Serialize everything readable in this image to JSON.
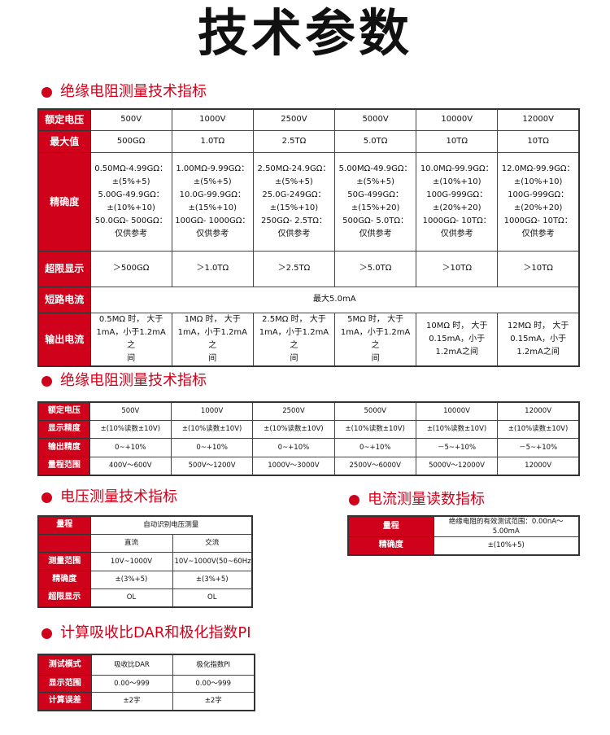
{
  "title": "技术参数",
  "colors": {
    "accent": "#d0021b"
  },
  "sections": {
    "insulation": "绝缘电阻测量技术指标",
    "insulation2": "绝缘电阻测量技术指标",
    "voltage": "电压测量技术指标",
    "current": "电流测量读数指标",
    "dar_pi": "计算吸收比DAR和极化指数PI"
  },
  "table1": {
    "rows": [
      {
        "label": "额定电压",
        "cells": [
          "500V",
          "1000V",
          "2500V",
          "5000V",
          "10000V",
          "12000V"
        ]
      },
      {
        "label": "最大值",
        "cells": [
          "500GΩ",
          "1.0TΩ",
          "2.5TΩ",
          "5.0TΩ",
          "10TΩ",
          "10TΩ"
        ]
      },
      {
        "label": "精确度",
        "cells": [
          "0.50MΩ-4.99GΩ：\n±(5%+5)\n5.00G-49.9GΩ：\n±(10%+10)\n50.0GΩ- 500GΩ：\n仅供参考",
          "1.00MΩ-9.99GΩ：\n±(5%+5)\n10.0G-99.9GΩ：\n±(15%+10)\n100GΩ- 1000GΩ：\n仅供参考",
          "2.50MΩ-24.9GΩ：\n±(5%+5)\n25.0G-249GΩ：\n±(15%+10)\n250GΩ- 2.5TΩ：\n仅供参考",
          "5.00MΩ-49.9GΩ：\n±(5%+5)\n50G-499GΩ：\n±(15%+20)\n500GΩ- 5.0TΩ：\n仅供参考",
          "10.0MΩ-99.9GΩ：\n±(10%+10)\n100G-999GΩ：\n±(20%+20)\n1000GΩ- 10TΩ：\n仅供参考",
          "12.0MΩ-99.9GΩ：\n±(10%+10)\n100G-999GΩ：\n±(20%+20)\n1000GΩ- 10TΩ：\n仅供参考"
        ]
      },
      {
        "label": "超限显示",
        "cells": [
          "＞500GΩ",
          "＞1.0TΩ",
          "＞2.5TΩ",
          "＞5.0TΩ",
          "＞10TΩ",
          "＞10TΩ"
        ]
      },
      {
        "label": "短路电流",
        "cells": [
          "最大5.0mA"
        ]
      },
      {
        "label": "输出电流",
        "cells": [
          "0.5MΩ 时， 大于\n1mA，小于1.2mA之\n间",
          "1MΩ 时， 大于\n1mA，小于1.2mA之\n间",
          "2.5MΩ 时， 大于\n1mA，小于1.2mA之\n间",
          "5MΩ 时， 大于\n1mA，小于1.2mA之\n间",
          "10MΩ 时， 大于\n0.15mA，小于\n1.2mA之间",
          "12MΩ 时， 大于\n0.15mA，小于\n1.2mA之间"
        ]
      }
    ]
  },
  "table2": {
    "rows": [
      {
        "label": "额定电压",
        "cells": [
          "500V",
          "1000V",
          "2500V",
          "5000V",
          "10000V",
          "12000V"
        ]
      },
      {
        "label": "显示精度",
        "cells": [
          "±(10%读数±10V)",
          "±(10%读数±10V)",
          "±(10%读数±10V)",
          "±(10%读数±10V)",
          "±(10%读数±10V)",
          "±(10%读数±10V)"
        ]
      },
      {
        "label": "输出精度",
        "cells": [
          "0~+10%",
          "0~+10%",
          "0~+10%",
          "0~+10%",
          "－5~+10%",
          "－5~+10%"
        ]
      },
      {
        "label": "量程范围",
        "cells": [
          "400V～600V",
          "500V～1200V",
          "1000V～3000V",
          "2500V～6000V",
          "5000V～12000V",
          "12000V"
        ]
      }
    ]
  },
  "table3": {
    "rows": [
      {
        "label": "量程",
        "cells": [
          "自动识别电压测量"
        ]
      },
      {
        "label": "",
        "cells": [
          "直流",
          "交流"
        ]
      },
      {
        "label": "测量范围",
        "cells": [
          "10V~1000V",
          "10V~1000V(50~60Hz)"
        ]
      },
      {
        "label": "精确度",
        "cells": [
          "±(3%+5)",
          "±(3%+5)"
        ]
      },
      {
        "label": "超限显示",
        "cells": [
          "OL",
          "OL"
        ]
      }
    ]
  },
  "table4": {
    "rows": [
      {
        "label": "量程",
        "cells": [
          "绝缘电阻的有效测试范围：0.00nA～5.00mA"
        ]
      },
      {
        "label": "精确度",
        "cells": [
          "±(10%+5)"
        ]
      }
    ]
  },
  "table5": {
    "rows": [
      {
        "label": "测试模式",
        "cells": [
          "吸收比DAR",
          "极化指数PI"
        ]
      },
      {
        "label": "显示范围",
        "cells": [
          "0.00～999",
          "0.00～999"
        ]
      },
      {
        "label": "计算误差",
        "cells": [
          "±2字",
          "±2字"
        ]
      }
    ]
  }
}
